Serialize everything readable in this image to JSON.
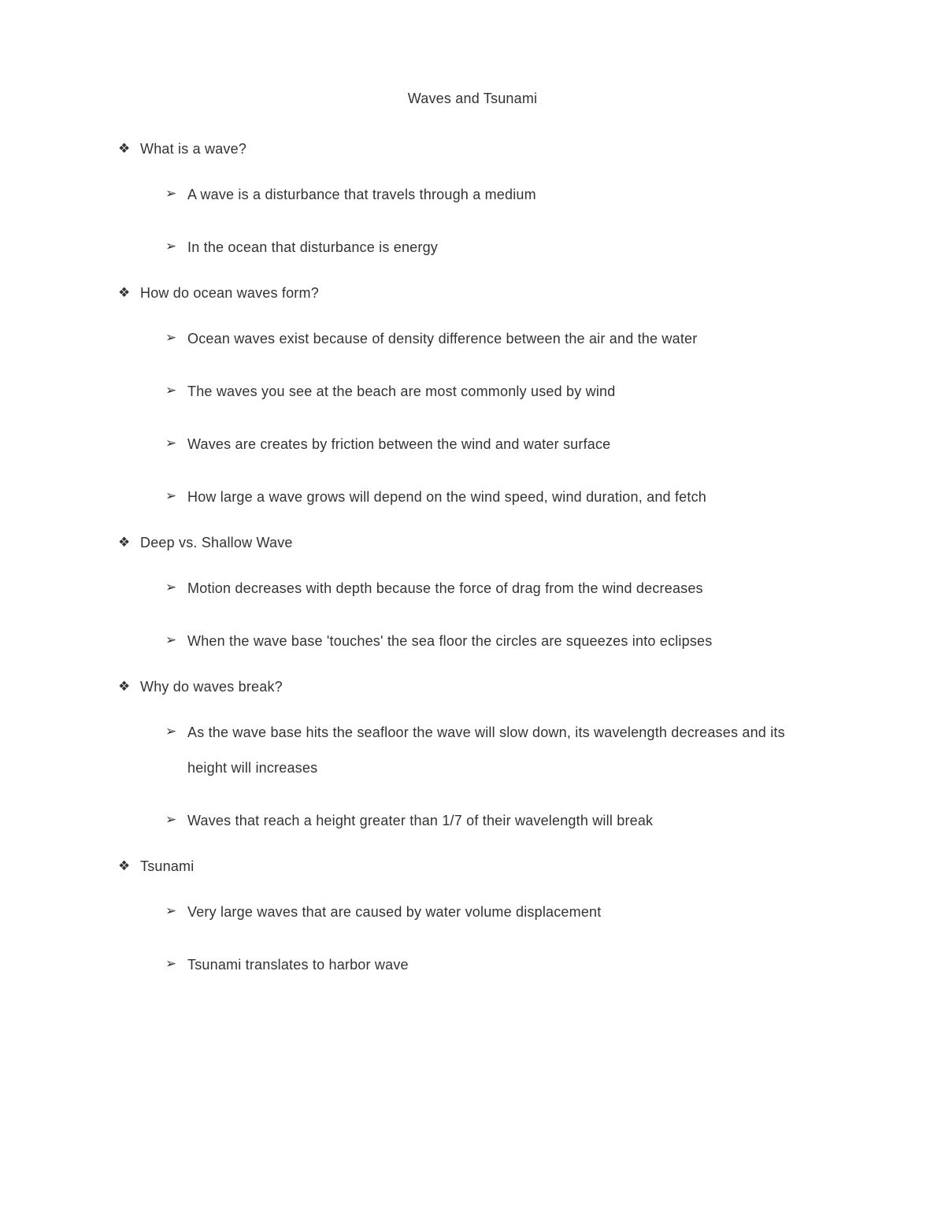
{
  "title": "Waves and Tsunami",
  "bullets": {
    "level1": "❖",
    "level2": "➢"
  },
  "colors": {
    "text": "#333333",
    "background": "#ffffff"
  },
  "typography": {
    "title_fontsize": 18,
    "body_fontsize": 18,
    "line_height_l1": 1.5,
    "line_height_l2": 2.5
  },
  "sections": [
    {
      "heading": "What is a wave?",
      "items": [
        "A wave is a disturbance that travels through a medium",
        "In the ocean that disturbance is energy"
      ]
    },
    {
      "heading": "How do ocean waves form?",
      "items": [
        "Ocean waves exist because of density difference between the air and the water",
        "The waves you see at the beach are most commonly used by wind",
        "Waves are creates by friction between the wind and water surface",
        "How large a wave grows will depend on the wind speed, wind duration, and fetch"
      ]
    },
    {
      "heading": "Deep vs. Shallow Wave",
      "items": [
        "Motion decreases with depth because the force of drag from the wind decreases",
        "When the wave base 'touches' the sea floor the circles are squeezes into eclipses"
      ]
    },
    {
      "heading": "Why do waves break?",
      "items": [
        "As the wave base hits the seafloor the wave will slow down, its wavelength decreases and its height will increases",
        "Waves that reach a height greater than 1/7 of their wavelength will break"
      ]
    },
    {
      "heading": "Tsunami",
      "items": [
        "Very large waves that are caused by water volume displacement",
        "Tsunami translates to harbor wave"
      ]
    }
  ]
}
